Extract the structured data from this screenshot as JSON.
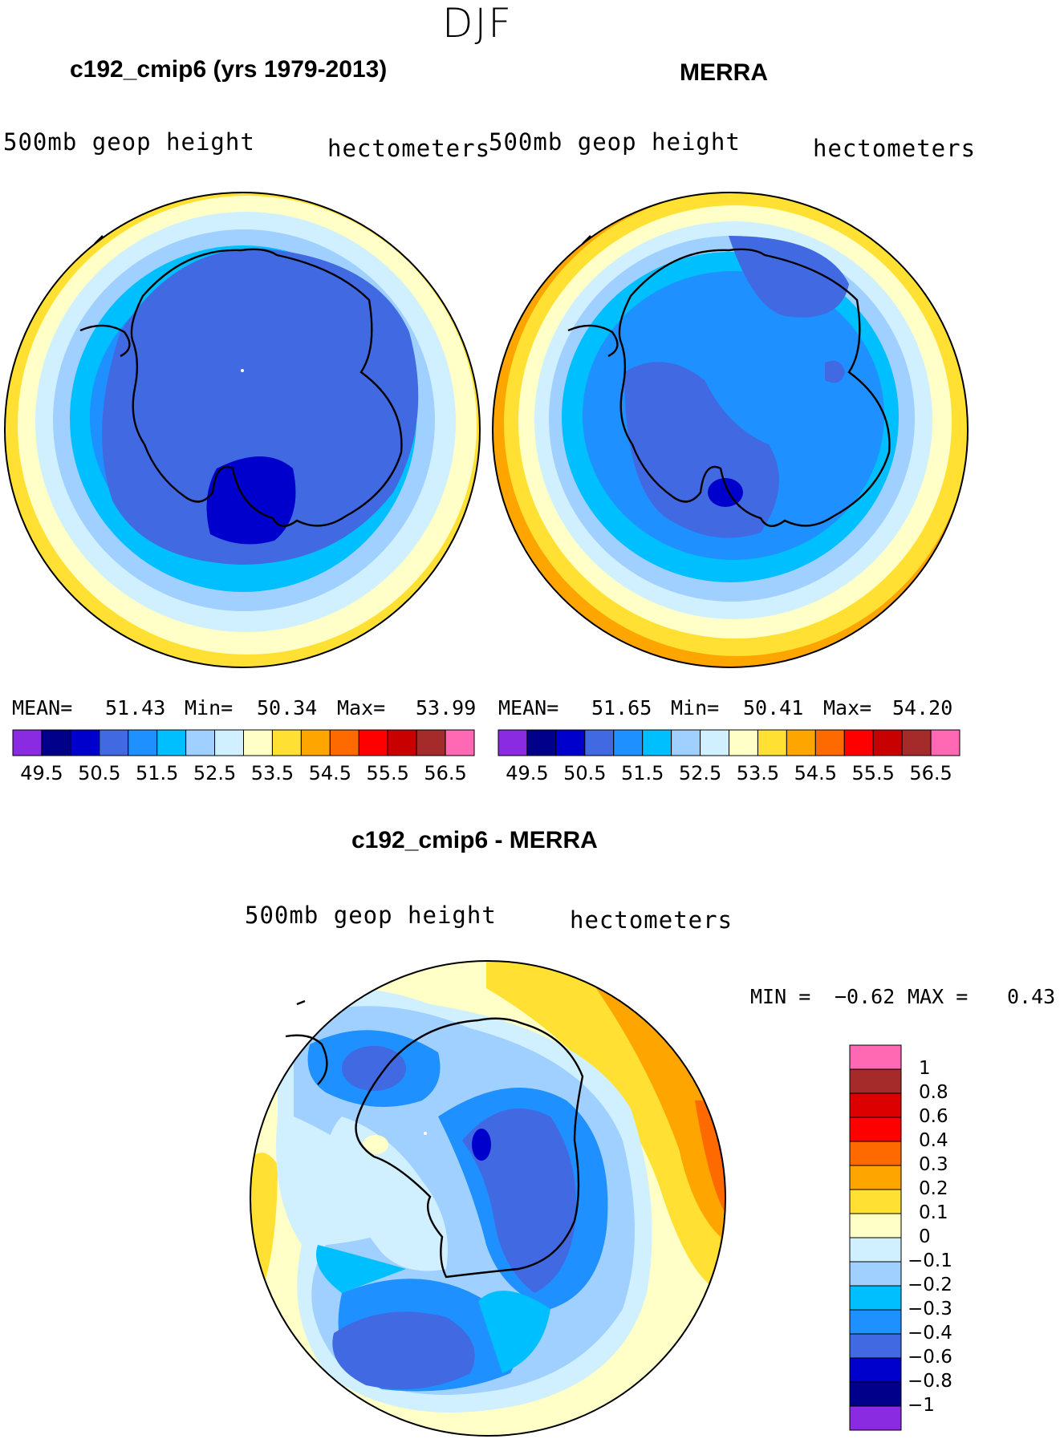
{
  "season": "DJF",
  "panels": [
    {
      "title": "c192_cmip6 (yrs 1979-2013)",
      "variable": "500mb geop height",
      "units": "hectometers",
      "stats": {
        "mean_label": "MEAN=",
        "mean": "51.43",
        "min_label": "Min=",
        "min": "50.34",
        "max_label": "Max=",
        "max": "53.99"
      }
    },
    {
      "title": "MERRA",
      "variable": "500mb geop height",
      "units": "hectometers",
      "stats": {
        "mean_label": "MEAN=",
        "mean": "51.65",
        "min_label": "Min=",
        "min": "50.41",
        "max_label": "Max=",
        "max": "54.20"
      }
    },
    {
      "title": "c192_cmip6 - MERRA",
      "variable": "500mb geop height",
      "units": "hectometers",
      "stats": {
        "min_label": "MIN =",
        "min": "−0.62",
        "max_label": "MAX =",
        "max": "0.43"
      }
    }
  ],
  "colorbar_abs": {
    "colors": [
      "#8a2be2",
      "#00008b",
      "#0000cd",
      "#4169e1",
      "#1e90ff",
      "#00bfff",
      "#a0d0ff",
      "#d0f0ff",
      "#ffffc8",
      "#ffe033",
      "#ffa500",
      "#ff6a00",
      "#ff0000",
      "#c80000",
      "#a52a2a",
      "#ff69b4"
    ],
    "ticks": [
      "49.5",
      "50.5",
      "51.5",
      "52.5",
      "53.5",
      "54.5",
      "55.5",
      "56.5"
    ]
  },
  "colorbar_diff": {
    "colors_top_to_bottom": [
      "#ff69b4",
      "#a52a2a",
      "#dc0000",
      "#ff0000",
      "#ff6a00",
      "#ffa500",
      "#ffe033",
      "#ffffc8",
      "#d0f0ff",
      "#a0d0ff",
      "#00bfff",
      "#1e90ff",
      "#4169e1",
      "#0000cd",
      "#00008b",
      "#8a2be2"
    ],
    "ticks_top_to_bottom": [
      "1",
      "0.8",
      "0.6",
      "0.4",
      "0.3",
      "0.2",
      "0.1",
      "0",
      "−0.1",
      "−0.2",
      "−0.3",
      "−0.4",
      "−0.6",
      "−0.8",
      "−1"
    ]
  },
  "chart_data": [
    {
      "type": "heatmap",
      "title": "c192_cmip6 (yrs 1979-2013)",
      "variable": "500mb geop height",
      "units": "hectometers",
      "projection": "south polar stereographic",
      "mean": 51.43,
      "min": 50.34,
      "max": 53.99,
      "levels": [
        49.5,
        50.5,
        51.5,
        52.5,
        53.5,
        54.5,
        55.5,
        56.5
      ]
    },
    {
      "type": "heatmap",
      "title": "MERRA",
      "variable": "500mb geop height",
      "units": "hectometers",
      "projection": "south polar stereographic",
      "mean": 51.65,
      "min": 50.41,
      "max": 54.2,
      "levels": [
        49.5,
        50.5,
        51.5,
        52.5,
        53.5,
        54.5,
        55.5,
        56.5
      ]
    },
    {
      "type": "heatmap",
      "title": "c192_cmip6 - MERRA",
      "variable": "500mb geop height",
      "units": "hectometers",
      "projection": "south polar stereographic",
      "min": -0.62,
      "max": 0.43,
      "levels": [
        -1,
        -0.8,
        -0.6,
        -0.4,
        -0.3,
        -0.2,
        -0.1,
        0,
        0.1,
        0.2,
        0.3,
        0.4,
        0.6,
        0.8,
        1
      ]
    }
  ]
}
